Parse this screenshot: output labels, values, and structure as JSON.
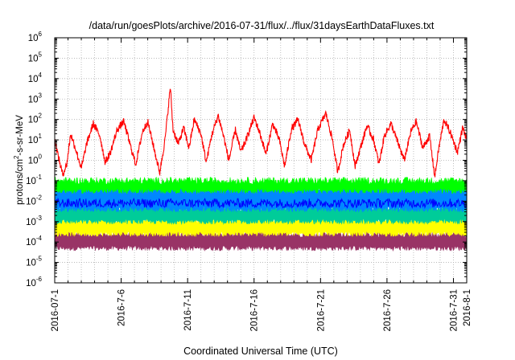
{
  "chart_data": {
    "type": "line",
    "title": "/data/run/goesPlots/archive/2016-07-31/flux/../flux/31daysEarthDataFluxes.txt",
    "xlabel": "Coordinated Universal Time (UTC)",
    "ylabel": "protons/cm²-s-sr-MeV",
    "ylabel_parts": {
      "before": "protons/cm",
      "sup": "2",
      "after": "-s-sr-MeV"
    },
    "yscale": "log",
    "ylim_exponents": [
      -6,
      6
    ],
    "y_ticks": [
      {
        "base": "10",
        "exp": "-6"
      },
      {
        "base": "10",
        "exp": "-5"
      },
      {
        "base": "10",
        "exp": "-4"
      },
      {
        "base": "10",
        "exp": "-3"
      },
      {
        "base": "10",
        "exp": "-2"
      },
      {
        "base": "10",
        "exp": "-1"
      },
      {
        "base": "10",
        "exp": "0"
      },
      {
        "base": "10",
        "exp": "1"
      },
      {
        "base": "10",
        "exp": "2"
      },
      {
        "base": "10",
        "exp": "3"
      },
      {
        "base": "10",
        "exp": "4"
      },
      {
        "base": "10",
        "exp": "5"
      },
      {
        "base": "10",
        "exp": "6"
      }
    ],
    "x_range_days": [
      0,
      31
    ],
    "x_ticks": [
      {
        "day": 0,
        "label": "2016-07-1"
      },
      {
        "day": 5,
        "label": "2016-7-6"
      },
      {
        "day": 10,
        "label": "2016-7-11"
      },
      {
        "day": 15,
        "label": "2016-7-16"
      },
      {
        "day": 20,
        "label": "2016-7-21"
      },
      {
        "day": 25,
        "label": "2016-7-26"
      },
      {
        "day": 30,
        "label": "2016-7-31"
      },
      {
        "day": 31,
        "label": "2016-8-1"
      }
    ],
    "grid": true,
    "series": [
      {
        "color": "#993366",
        "style": "band",
        "log10_low": -4.3,
        "log10_high": -3.6
      },
      {
        "color": "#ffff00",
        "style": "band",
        "log10_low": -3.6,
        "log10_high": -2.9
      },
      {
        "color": "#00cc99",
        "style": "band",
        "log10_low": -3.0,
        "log10_high": -2.3
      },
      {
        "color": "#0088ff",
        "style": "band",
        "log10_low": -2.4,
        "log10_high": -1.3
      },
      {
        "color": "#00ff00",
        "style": "band",
        "log10_low": -1.5,
        "log10_high": -1.0
      },
      {
        "color": "#0000ff",
        "style": "line",
        "log10_mean": -2.1
      },
      {
        "color": "#ff0000",
        "style": "line",
        "log10_profile": [
          [
            0.0,
            1.0
          ],
          [
            0.3,
            0.1
          ],
          [
            0.6,
            -0.7
          ],
          [
            0.9,
            -0.2
          ],
          [
            1.2,
            1.3
          ],
          [
            1.6,
            0.5
          ],
          [
            2.0,
            -0.4
          ],
          [
            2.4,
            0.8
          ],
          [
            2.9,
            1.8
          ],
          [
            3.4,
            1.2
          ],
          [
            3.8,
            -0.1
          ],
          [
            4.2,
            0.4
          ],
          [
            4.7,
            1.5
          ],
          [
            5.2,
            1.9
          ],
          [
            5.7,
            0.7
          ],
          [
            6.1,
            -0.2
          ],
          [
            6.6,
            1.4
          ],
          [
            7.0,
            1.9
          ],
          [
            7.5,
            0.5
          ],
          [
            7.9,
            -0.6
          ],
          [
            8.3,
            1.0
          ],
          [
            8.7,
            3.6
          ],
          [
            8.9,
            1.5
          ],
          [
            9.3,
            0.8
          ],
          [
            9.7,
            1.6
          ],
          [
            10.1,
            0.6
          ],
          [
            10.5,
            2.0
          ],
          [
            11.0,
            1.3
          ],
          [
            11.4,
            -0.1
          ],
          [
            11.8,
            1.2
          ],
          [
            12.3,
            2.2
          ],
          [
            12.7,
            1.2
          ],
          [
            13.1,
            0.0
          ],
          [
            13.6,
            1.5
          ],
          [
            14.0,
            0.4
          ],
          [
            14.4,
            1.0
          ],
          [
            15.0,
            2.1
          ],
          [
            15.4,
            1.4
          ],
          [
            15.9,
            0.3
          ],
          [
            16.4,
            1.8
          ],
          [
            16.9,
            1.0
          ],
          [
            17.3,
            -0.3
          ],
          [
            17.8,
            1.5
          ],
          [
            18.3,
            2.0
          ],
          [
            18.8,
            0.8
          ],
          [
            19.3,
            0.0
          ],
          [
            19.8,
            1.5
          ],
          [
            20.4,
            2.3
          ],
          [
            20.9,
            1.0
          ],
          [
            21.3,
            -0.6
          ],
          [
            21.7,
            0.7
          ],
          [
            22.2,
            1.5
          ],
          [
            22.6,
            -0.3
          ],
          [
            23.0,
            0.6
          ],
          [
            23.5,
            1.7
          ],
          [
            24.0,
            1.0
          ],
          [
            24.4,
            -0.2
          ],
          [
            24.8,
            1.2
          ],
          [
            25.3,
            1.8
          ],
          [
            25.8,
            0.9
          ],
          [
            26.3,
            0.0
          ],
          [
            26.8,
            1.4
          ],
          [
            27.2,
            1.9
          ],
          [
            27.7,
            0.6
          ],
          [
            28.2,
            1.2
          ],
          [
            28.6,
            -0.8
          ],
          [
            28.9,
            0.6
          ],
          [
            29.3,
            2.0
          ],
          [
            29.8,
            1.3
          ],
          [
            30.3,
            0.4
          ],
          [
            30.7,
            1.6
          ],
          [
            31.0,
            1.0
          ]
        ]
      }
    ]
  }
}
